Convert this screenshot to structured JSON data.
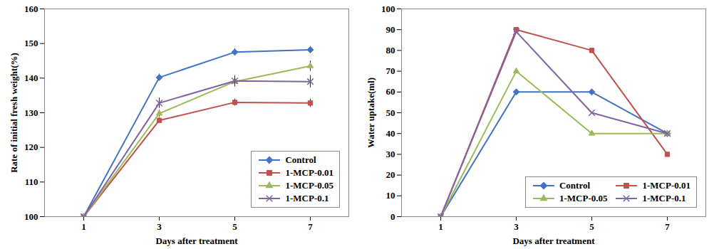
{
  "chart_data": [
    {
      "type": "line",
      "x_label": "Days after treatment",
      "y_label": "Rate of initial fresh weight(%)",
      "categories": [
        "1",
        "3",
        "5",
        "7"
      ],
      "ylim": [
        100,
        160
      ],
      "yticks": [
        100,
        110,
        120,
        130,
        140,
        150,
        160
      ],
      "grid": false,
      "legend": "lower right",
      "series": [
        {
          "name": "Control",
          "color": "#4472c4",
          "marker": "diamond",
          "values": [
            100,
            140.2,
            147.5,
            148.2
          ],
          "errors": [
            0,
            1,
            1,
            1
          ]
        },
        {
          "name": "1-MCP-0.01",
          "color": "#c0504d",
          "marker": "square",
          "values": [
            100,
            127.8,
            133,
            132.8
          ],
          "errors": [
            0,
            0.8,
            1,
            1.2
          ]
        },
        {
          "name": "1-MCP-0.05",
          "color": "#9bbb59",
          "marker": "triangle",
          "values": [
            100,
            129.8,
            139,
            143.5
          ],
          "errors": [
            0,
            1,
            1.5,
            1.5
          ]
        },
        {
          "name": "1-MCP-0.1",
          "color": "#8064a2",
          "marker": "x",
          "values": [
            100,
            132.8,
            139.2,
            139
          ],
          "errors": [
            0,
            1.5,
            1.5,
            1.8
          ]
        }
      ]
    },
    {
      "type": "line",
      "x_label": "Days after treatment",
      "y_label": "Water uptake(ml)",
      "categories": [
        "1",
        "3",
        "5",
        "7"
      ],
      "ylim": [
        0,
        100
      ],
      "yticks": [
        0,
        10,
        20,
        30,
        40,
        50,
        60,
        70,
        80,
        90,
        100
      ],
      "grid": false,
      "legend": "lower right",
      "series": [
        {
          "name": "Control",
          "color": "#4472c4",
          "marker": "diamond",
          "values": [
            0,
            60,
            60,
            40
          ]
        },
        {
          "name": "1-MCP-0.01",
          "color": "#c0504d",
          "marker": "square",
          "values": [
            0,
            90,
            80,
            30
          ]
        },
        {
          "name": "1-MCP-0.05",
          "color": "#9bbb59",
          "marker": "triangle",
          "values": [
            0,
            70,
            40,
            40
          ]
        },
        {
          "name": "1-MCP-0.1",
          "color": "#8064a2",
          "marker": "x",
          "values": [
            0,
            89,
            50,
            40
          ]
        }
      ]
    }
  ]
}
